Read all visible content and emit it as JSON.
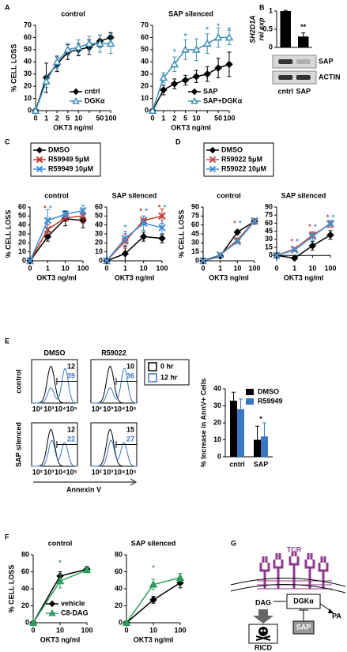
{
  "chart_data": [
    {
      "type": "line",
      "panel": "A",
      "title": "control",
      "ylabel": "% CELL LOSS",
      "xlabel": "OKT3 ng/ml",
      "categories": [
        "0",
        "1",
        "2",
        "5",
        "10",
        null,
        "50",
        "100"
      ],
      "ylim": [
        0,
        70
      ],
      "yticks": [
        0,
        10,
        20,
        30,
        40,
        50,
        60,
        70
      ],
      "legend": "bottom-right",
      "series": [
        {
          "name": "cntrl",
          "color": "#000000",
          "marker": "diamond",
          "values": [
            0,
            27,
            38,
            48,
            50,
            52,
            57,
            60
          ],
          "errors": [
            0,
            12,
            6,
            6,
            5,
            6,
            5,
            4
          ]
        },
        {
          "name": "DGKα",
          "color": "#3b8db5",
          "marker": "triangle-open",
          "values": [
            0,
            24,
            40,
            50,
            52,
            55,
            55,
            55
          ],
          "errors": [
            0,
            5,
            5,
            5,
            6,
            6,
            7,
            8
          ]
        }
      ]
    },
    {
      "type": "line",
      "title": "SAP silenced",
      "xlabel": "OKT3 ng/ml",
      "categories": [
        "0",
        "1",
        "2",
        "5",
        "10",
        null,
        "50",
        "100"
      ],
      "ylim": [
        0,
        70
      ],
      "yticks": [
        0,
        10,
        20,
        30,
        40,
        50,
        60,
        70
      ],
      "legend": "bottom-right",
      "series": [
        {
          "name": "SAP",
          "color": "#000000",
          "marker": "diamond",
          "values": [
            0,
            17,
            22,
            25,
            28,
            30,
            35,
            38
          ],
          "errors": [
            0,
            4,
            4,
            4,
            5,
            6,
            8,
            10
          ]
        },
        {
          "name": "SAP+DGKα",
          "color": "#3b8db5",
          "marker": "triangle-open",
          "values": [
            0,
            27,
            38,
            50,
            50,
            55,
            60,
            60
          ],
          "errors": [
            0,
            4,
            6,
            8,
            9,
            8,
            8,
            6
          ]
        }
      ],
      "annotations": [
        {
          "text": "*",
          "x": 2,
          "y": 48,
          "color": "#3b8db5"
        },
        {
          "text": "*",
          "x": 3,
          "y": 61,
          "color": "#3b8db5"
        },
        {
          "text": "*",
          "x": 5,
          "y": 66,
          "color": "#3b8db5"
        },
        {
          "text": "*",
          "x": 6,
          "y": 69,
          "color": "#3b8db5"
        },
        {
          "text": "*",
          "x": 7,
          "y": 66,
          "color": "#3b8db5"
        }
      ]
    },
    {
      "type": "bar",
      "panel": "B",
      "ylabel": [
        "SH2D1A",
        "rel exp"
      ],
      "categories": [
        "cntrl",
        "SAP"
      ],
      "values": [
        1,
        0.3
      ],
      "errors": [
        0.02,
        0.1
      ],
      "color": "#000000",
      "ylim": [
        0,
        1
      ],
      "yticks": [
        0,
        0.5,
        1
      ],
      "blot": [
        "SAP",
        "ACTIN"
      ],
      "annotations": [
        {
          "text": "**",
          "x": 1,
          "y": 0.55,
          "color": "#000000"
        }
      ]
    },
    {
      "type": "line",
      "panel": "C",
      "title": "control",
      "ylabel": "% CELL LOSS",
      "xlabel": "OKT3 ng/ml",
      "categories": [
        "0",
        "1",
        "10",
        "100"
      ],
      "ylim": [
        0,
        60
      ],
      "yticks": [
        0,
        10,
        20,
        30,
        40,
        50,
        60
      ],
      "legend": "top-outside",
      "series": [
        {
          "name": "DMSO",
          "color": "#000000",
          "marker": "diamond",
          "values": [
            0,
            27,
            47,
            45
          ],
          "errors": [
            0,
            5,
            8,
            8
          ]
        },
        {
          "name": "R59949 5μM",
          "color": "#c0392b",
          "marker": "x",
          "values": [
            0,
            35,
            48,
            50
          ],
          "errors": [
            0,
            5,
            4,
            8
          ]
        },
        {
          "name": "R59949 10μM",
          "color": "#3d8fd6",
          "marker": "x",
          "values": [
            0,
            45,
            52,
            56
          ],
          "errors": [
            0,
            12,
            4,
            6
          ]
        }
      ],
      "annotations": [
        {
          "text": "*",
          "x": 1,
          "y": 58,
          "color": "#c0392b"
        },
        {
          "text": "*",
          "x": 1,
          "y": 58,
          "color": "#3d8fd6"
        }
      ]
    },
    {
      "type": "line",
      "title": "SAP silenced",
      "xlabel": "OKT3 ng/ml",
      "categories": [
        "0",
        "1",
        "10",
        "100"
      ],
      "ylim": [
        0,
        60
      ],
      "yticks": [
        0,
        10,
        20,
        30,
        40,
        50,
        60
      ],
      "series": [
        {
          "color": "#000000",
          "marker": "diamond",
          "values": [
            0,
            8,
            27,
            25
          ],
          "errors": [
            0,
            8,
            5,
            5
          ]
        },
        {
          "color": "#c0392b",
          "marker": "x",
          "values": [
            0,
            22,
            45,
            50
          ],
          "errors": [
            0,
            8,
            5,
            8
          ]
        },
        {
          "color": "#3d8fd6",
          "marker": "x",
          "values": [
            0,
            25,
            42,
            37
          ],
          "errors": [
            0,
            8,
            8,
            8
          ]
        }
      ],
      "annotations": [
        {
          "text": "*",
          "x": 1,
          "y": 37,
          "color": "#3d8fd6"
        },
        {
          "text": "*",
          "x": 2,
          "y": 55,
          "color": "#c0392b"
        },
        {
          "text": "*",
          "x": 2,
          "y": 55,
          "color": "#3d8fd6"
        },
        {
          "text": "*",
          "x": 3,
          "y": 59,
          "color": "#c0392b"
        },
        {
          "text": "*",
          "x": 3,
          "y": 59,
          "color": "#3d8fd6"
        }
      ]
    },
    {
      "type": "line",
      "panel": "D",
      "title": "control",
      "ylabel": "% CELL LOSS",
      "xlabel": "OKT3 ng/ml",
      "categories": [
        "0",
        "1",
        "10",
        "100"
      ],
      "ylim": [
        0,
        90
      ],
      "yticks": [
        0,
        15,
        30,
        45,
        60,
        75,
        90
      ],
      "legend": "top-outside",
      "series": [
        {
          "name": "DMSO",
          "color": "#000000",
          "marker": "diamond",
          "values": [
            0,
            8,
            48,
            66
          ],
          "errors": [
            0,
            2,
            3,
            3
          ]
        },
        {
          "name": "R59022 5μM",
          "color": "#c0504d",
          "marker": "x",
          "values": [
            0,
            10,
            35,
            67
          ],
          "errors": [
            0,
            2,
            3,
            3
          ]
        },
        {
          "name": "R59022 10μM",
          "color": "#4a90c8",
          "marker": "x",
          "values": [
            0,
            10,
            32,
            66
          ],
          "errors": [
            0,
            2,
            3,
            3
          ]
        }
      ],
      "annotations": [
        {
          "text": "*",
          "x": 2,
          "y": 62,
          "color": "#c0504d"
        },
        {
          "text": "*",
          "x": 2,
          "y": 62,
          "color": "#4a90c8"
        }
      ]
    },
    {
      "type": "line",
      "title": "SAP silenced",
      "xlabel": "OKT3 ng/ml",
      "categories": [
        "0",
        "1",
        "10",
        "100"
      ],
      "ylim": [
        -10,
        90
      ],
      "yticks": [
        0,
        15,
        30,
        45,
        60,
        75,
        90
      ],
      "series": [
        {
          "color": "#000000",
          "marker": "diamond",
          "values": [
            0,
            -5,
            18,
            38
          ],
          "errors": [
            0,
            3,
            8,
            8
          ]
        },
        {
          "color": "#c0504d",
          "marker": "x",
          "values": [
            0,
            12,
            38,
            58
          ],
          "errors": [
            0,
            3,
            6,
            6
          ]
        },
        {
          "color": "#4a90c8",
          "marker": "x",
          "values": [
            0,
            10,
            35,
            60
          ],
          "errors": [
            0,
            3,
            8,
            5
          ]
        }
      ],
      "annotations": [
        {
          "text": "*",
          "x": 1,
          "y": 25,
          "color": "#c0504d"
        },
        {
          "text": "*",
          "x": 1,
          "y": 25,
          "color": "#4a90c8"
        },
        {
          "text": "*",
          "x": 2,
          "y": 52,
          "color": "#c0504d"
        },
        {
          "text": "*",
          "x": 2,
          "y": 52,
          "color": "#4a90c8"
        },
        {
          "text": "*",
          "x": 3,
          "y": 70,
          "color": "#c0504d"
        },
        {
          "text": "*",
          "x": 3,
          "y": 70,
          "color": "#4a90c8"
        }
      ]
    },
    {
      "type": "bar",
      "ylabel": "% Increase in AnnV+ Cells",
      "categories": [
        "cntrl",
        "SAP"
      ],
      "ylim": [
        0,
        40
      ],
      "yticks": [
        0,
        10,
        20,
        30,
        40
      ],
      "legend": "top-right",
      "series": [
        {
          "name": "DMSO",
          "color": "#000000",
          "values": [
            33,
            10
          ],
          "errors": [
            5,
            8
          ]
        },
        {
          "name": "R59949",
          "color": "#3a78c0",
          "values": [
            28,
            12
          ],
          "errors": [
            6,
            8
          ]
        }
      ],
      "annotations": [
        {
          "text": "*",
          "x": 1,
          "y": 22,
          "color": "#000000"
        }
      ]
    },
    {
      "type": "line",
      "panel": "F",
      "title": "control",
      "ylabel": "% CELL LOSS",
      "xlabel": "OKT3 ng/ml",
      "categories": [
        "0",
        "10",
        "100"
      ],
      "ylim": [
        0,
        80
      ],
      "yticks": [
        0,
        20,
        40,
        60,
        80
      ],
      "legend": "bottom-right",
      "series": [
        {
          "name": "vehicle",
          "color": "#000000",
          "marker": "diamond",
          "values": [
            0,
            55,
            63
          ],
          "errors": [
            0,
            5,
            3
          ]
        },
        {
          "name": "C8-DAG",
          "color": "#2e9e5e",
          "marker": "triangle",
          "values": [
            0,
            49,
            62
          ],
          "errors": [
            0,
            8,
            3
          ]
        }
      ],
      "annotations": [
        {
          "text": "*",
          "x": 1,
          "y": 70,
          "color": "#2e9e5e"
        }
      ]
    },
    {
      "type": "line",
      "title": "SAP silenced",
      "xlabel": "OKT3 ng/ml",
      "categories": [
        "0",
        "10",
        "100"
      ],
      "ylim": [
        0,
        80
      ],
      "yticks": [
        0,
        20,
        40,
        60,
        80
      ],
      "series": [
        {
          "color": "#000000",
          "marker": "diamond",
          "values": [
            0,
            27,
            47
          ],
          "errors": [
            0,
            4,
            6
          ]
        },
        {
          "color": "#2e9e5e",
          "marker": "triangle",
          "values": [
            0,
            45,
            53
          ],
          "errors": [
            0,
            6,
            5
          ]
        }
      ],
      "annotations": [
        {
          "text": "*",
          "x": 1,
          "y": 64,
          "color": "#2e9e5e"
        }
      ]
    }
  ],
  "flow": {
    "panel": "E",
    "columns": [
      "DMSO",
      "R59022"
    ],
    "rows": [
      "control",
      "SAP silenced"
    ],
    "gates": [
      [
        {
          "top": 12,
          "bottom": 39
        },
        {
          "top": 10,
          "bottom": 36
        }
      ],
      [
        {
          "top": 12,
          "bottom": 22
        },
        {
          "top": 15,
          "bottom": 27
        }
      ]
    ],
    "xticks": [
      "10²",
      "10³",
      "10⁴",
      "10⁵"
    ],
    "xlabel": "Annexin V",
    "legend": [
      {
        "name": "0 hr",
        "color": "#000000"
      },
      {
        "name": "12 hr",
        "color": "#3a78c0"
      }
    ]
  },
  "diagram": {
    "panel": "G",
    "tcr": "TCR",
    "dag": "DAG",
    "dgk": "DGKα",
    "pa": "PA",
    "sap": "SAP",
    "ricd": "RICD"
  }
}
